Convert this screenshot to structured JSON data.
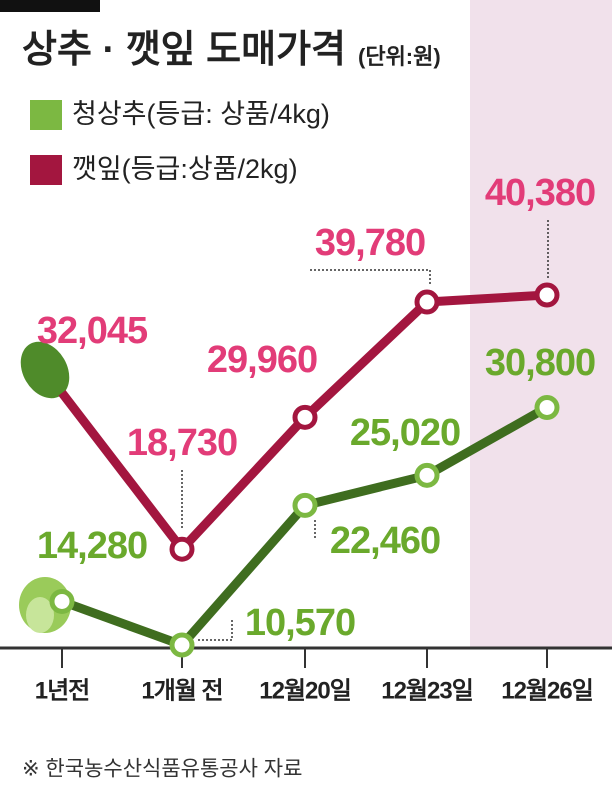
{
  "chart_data": {
    "type": "line",
    "title": "상추 · 깻잎 도매가격",
    "unit": "(단위:원)",
    "categories": [
      "1년전",
      "1개월 전",
      "12월20일",
      "12월23일",
      "12월26일"
    ],
    "series": [
      {
        "name": "청상추(등급: 상품/4kg)",
        "color": "#3f6d1f",
        "label_color": "#6aa92c",
        "marker_color": "#7cb842",
        "values": [
          14280,
          10570,
          22460,
          25020,
          30800
        ],
        "value_labels": [
          "14,280",
          "10,570",
          "22,460",
          "25,020",
          "30,800"
        ]
      },
      {
        "name": "깻잎(등급:상품/2kg)",
        "color": "#a3163f",
        "label_color": "#e23c78",
        "marker_color": "#a3163f",
        "values": [
          32045,
          18730,
          29960,
          39780,
          40380
        ],
        "value_labels": [
          "32,045",
          "18,730",
          "29,960",
          "39,780",
          "40,380"
        ]
      }
    ],
    "source": "※ 한국농수산식품유통공사 자료"
  }
}
